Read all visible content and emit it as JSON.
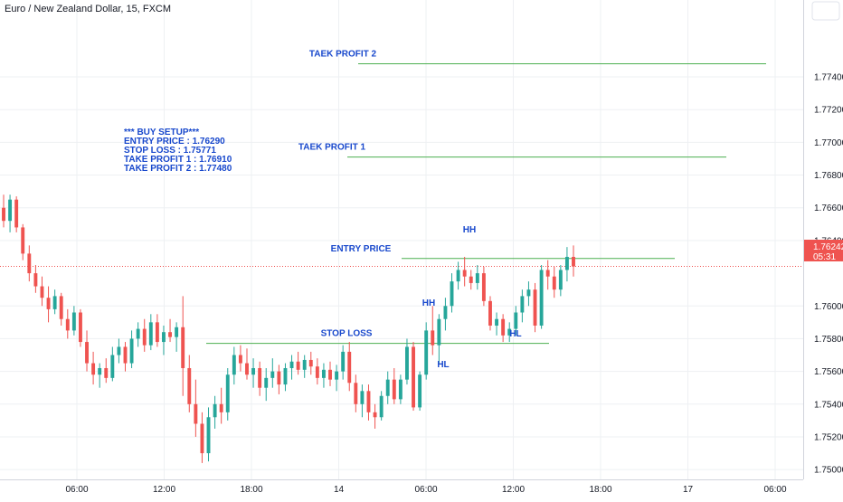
{
  "header": {
    "symbol_title": "Euro / New Zealand Dollar, 15, FXCM"
  },
  "colors": {
    "up": "#26a69a",
    "down": "#ef5350",
    "level_line": "#4caf50",
    "annotation": "#1848cc",
    "price_tag": "#ef5350",
    "grid": "#eef0f3"
  },
  "price_tag": {
    "price": "1.76242",
    "countdown": "05:31"
  },
  "chart_data": {
    "type": "candlestick",
    "title": "Euro / New Zealand Dollar, 15, FXCM",
    "x_ticks": [
      "06:00",
      "12:00",
      "18:00",
      "14",
      "06:00",
      "12:00",
      "18:00",
      "17",
      "06:00"
    ],
    "y_ticks": [
      "1.77400",
      "1.77200",
      "1.77000",
      "1.76800",
      "1.76600",
      "1.76400",
      "1.76000",
      "1.75800",
      "1.75600",
      "1.75400",
      "1.75200",
      "1.75000"
    ],
    "ylim": [
      1.7494,
      1.7787
    ],
    "grid": true,
    "last_price": 1.76242,
    "levels": [
      {
        "name": "TAEK PROFIT 2",
        "price": 1.7748
      },
      {
        "name": "TAEK PROFIT 1",
        "price": 1.7691
      },
      {
        "name": "ENTRY PRICE",
        "price": 1.7629
      },
      {
        "name": "STOP LOSS",
        "price": 1.75771
      }
    ],
    "labels": [
      "TAEK PROFIT 2",
      "TAEK PROFIT 1",
      "ENTRY PRICE",
      "STOP LOSS",
      "HH",
      "HH",
      "HL",
      "HL"
    ],
    "setup_text": [
      "*** BUY SETUP***",
      "ENTRY PRICE : 1.76290",
      "STOP LOSS : 1.75771",
      "TAKE PROFIT 1 : 1.76910",
      "TAKE PROFIT 2 : 1.77480"
    ],
    "candles": [
      {
        "o": 1.766,
        "h": 1.7668,
        "l": 1.7648,
        "c": 1.7652
      },
      {
        "o": 1.7652,
        "h": 1.7668,
        "l": 1.7645,
        "c": 1.7665
      },
      {
        "o": 1.7665,
        "h": 1.7667,
        "l": 1.7645,
        "c": 1.7648
      },
      {
        "o": 1.7648,
        "h": 1.765,
        "l": 1.7628,
        "c": 1.7632
      },
      {
        "o": 1.7632,
        "h": 1.7637,
        "l": 1.7615,
        "c": 1.762
      },
      {
        "o": 1.762,
        "h": 1.7625,
        "l": 1.7608,
        "c": 1.7612
      },
      {
        "o": 1.7612,
        "h": 1.7618,
        "l": 1.76,
        "c": 1.7605
      },
      {
        "o": 1.7605,
        "h": 1.7612,
        "l": 1.759,
        "c": 1.7598
      },
      {
        "o": 1.7598,
        "h": 1.761,
        "l": 1.7595,
        "c": 1.7606
      },
      {
        "o": 1.7606,
        "h": 1.7608,
        "l": 1.7588,
        "c": 1.7592
      },
      {
        "o": 1.7592,
        "h": 1.7598,
        "l": 1.758,
        "c": 1.7585
      },
      {
        "o": 1.7585,
        "h": 1.76,
        "l": 1.7582,
        "c": 1.7596
      },
      {
        "o": 1.7596,
        "h": 1.7598,
        "l": 1.7575,
        "c": 1.7578
      },
      {
        "o": 1.7578,
        "h": 1.7585,
        "l": 1.756,
        "c": 1.7565
      },
      {
        "o": 1.7565,
        "h": 1.7572,
        "l": 1.7552,
        "c": 1.7558
      },
      {
        "o": 1.7558,
        "h": 1.7565,
        "l": 1.755,
        "c": 1.7562
      },
      {
        "o": 1.7562,
        "h": 1.7568,
        "l": 1.7553,
        "c": 1.7556
      },
      {
        "o": 1.7556,
        "h": 1.7575,
        "l": 1.7554,
        "c": 1.757
      },
      {
        "o": 1.757,
        "h": 1.758,
        "l": 1.7565,
        "c": 1.7575
      },
      {
        "o": 1.7575,
        "h": 1.7578,
        "l": 1.756,
        "c": 1.7565
      },
      {
        "o": 1.7565,
        "h": 1.7585,
        "l": 1.7562,
        "c": 1.758
      },
      {
        "o": 1.758,
        "h": 1.759,
        "l": 1.7575,
        "c": 1.7586
      },
      {
        "o": 1.7586,
        "h": 1.7592,
        "l": 1.7572,
        "c": 1.7576
      },
      {
        "o": 1.7576,
        "h": 1.7595,
        "l": 1.7573,
        "c": 1.759
      },
      {
        "o": 1.759,
        "h": 1.7595,
        "l": 1.7575,
        "c": 1.7578
      },
      {
        "o": 1.7578,
        "h": 1.7588,
        "l": 1.757,
        "c": 1.7584
      },
      {
        "o": 1.7584,
        "h": 1.7592,
        "l": 1.7578,
        "c": 1.7581
      },
      {
        "o": 1.7581,
        "h": 1.759,
        "l": 1.7572,
        "c": 1.7587
      },
      {
        "o": 1.7587,
        "h": 1.7606,
        "l": 1.7545,
        "c": 1.7562
      },
      {
        "o": 1.7562,
        "h": 1.757,
        "l": 1.7535,
        "c": 1.754
      },
      {
        "o": 1.754,
        "h": 1.7555,
        "l": 1.752,
        "c": 1.7528
      },
      {
        "o": 1.7528,
        "h": 1.7535,
        "l": 1.7504,
        "c": 1.751
      },
      {
        "o": 1.751,
        "h": 1.7538,
        "l": 1.7505,
        "c": 1.7532
      },
      {
        "o": 1.7532,
        "h": 1.7545,
        "l": 1.7525,
        "c": 1.754
      },
      {
        "o": 1.754,
        "h": 1.755,
        "l": 1.7528,
        "c": 1.7535
      },
      {
        "o": 1.7535,
        "h": 1.7562,
        "l": 1.753,
        "c": 1.7558
      },
      {
        "o": 1.7558,
        "h": 1.7575,
        "l": 1.7552,
        "c": 1.757
      },
      {
        "o": 1.757,
        "h": 1.7576,
        "l": 1.756,
        "c": 1.7565
      },
      {
        "o": 1.7565,
        "h": 1.7574,
        "l": 1.7555,
        "c": 1.7558
      },
      {
        "o": 1.7558,
        "h": 1.7568,
        "l": 1.755,
        "c": 1.7562
      },
      {
        "o": 1.7562,
        "h": 1.7566,
        "l": 1.7545,
        "c": 1.755
      },
      {
        "o": 1.755,
        "h": 1.7562,
        "l": 1.7542,
        "c": 1.7556
      },
      {
        "o": 1.7556,
        "h": 1.7568,
        "l": 1.755,
        "c": 1.756
      },
      {
        "o": 1.756,
        "h": 1.7564,
        "l": 1.7546,
        "c": 1.7552
      },
      {
        "o": 1.7552,
        "h": 1.7565,
        "l": 1.7548,
        "c": 1.7562
      },
      {
        "o": 1.7562,
        "h": 1.757,
        "l": 1.7555,
        "c": 1.7566
      },
      {
        "o": 1.7566,
        "h": 1.7572,
        "l": 1.7558,
        "c": 1.7561
      },
      {
        "o": 1.7561,
        "h": 1.757,
        "l": 1.7556,
        "c": 1.7567
      },
      {
        "o": 1.7567,
        "h": 1.7572,
        "l": 1.7558,
        "c": 1.7563
      },
      {
        "o": 1.7563,
        "h": 1.7568,
        "l": 1.7552,
        "c": 1.7556
      },
      {
        "o": 1.7556,
        "h": 1.7565,
        "l": 1.755,
        "c": 1.7561
      },
      {
        "o": 1.7561,
        "h": 1.7566,
        "l": 1.7551,
        "c": 1.7555
      },
      {
        "o": 1.7555,
        "h": 1.7564,
        "l": 1.7548,
        "c": 1.756
      },
      {
        "o": 1.756,
        "h": 1.7576,
        "l": 1.7555,
        "c": 1.7572
      },
      {
        "o": 1.7572,
        "h": 1.7578,
        "l": 1.7548,
        "c": 1.7553
      },
      {
        "o": 1.7553,
        "h": 1.7558,
        "l": 1.7535,
        "c": 1.754
      },
      {
        "o": 1.754,
        "h": 1.7552,
        "l": 1.7532,
        "c": 1.7548
      },
      {
        "o": 1.7548,
        "h": 1.7552,
        "l": 1.753,
        "c": 1.7535
      },
      {
        "o": 1.7535,
        "h": 1.754,
        "l": 1.7525,
        "c": 1.7532
      },
      {
        "o": 1.7532,
        "h": 1.7548,
        "l": 1.753,
        "c": 1.7545
      },
      {
        "o": 1.7545,
        "h": 1.756,
        "l": 1.754,
        "c": 1.7555
      },
      {
        "o": 1.7555,
        "h": 1.7562,
        "l": 1.754,
        "c": 1.7543
      },
      {
        "o": 1.7543,
        "h": 1.7558,
        "l": 1.754,
        "c": 1.7555
      },
      {
        "o": 1.7555,
        "h": 1.758,
        "l": 1.7552,
        "c": 1.7575
      },
      {
        "o": 1.7575,
        "h": 1.7578,
        "l": 1.7536,
        "c": 1.7538
      },
      {
        "o": 1.7538,
        "h": 1.756,
        "l": 1.7536,
        "c": 1.7558
      },
      {
        "o": 1.7558,
        "h": 1.759,
        "l": 1.7555,
        "c": 1.7585
      },
      {
        "o": 1.7585,
        "h": 1.76,
        "l": 1.757,
        "c": 1.7576
      },
      {
        "o": 1.7576,
        "h": 1.7595,
        "l": 1.7565,
        "c": 1.7592
      },
      {
        "o": 1.7592,
        "h": 1.7605,
        "l": 1.7585,
        "c": 1.76
      },
      {
        "o": 1.76,
        "h": 1.762,
        "l": 1.7596,
        "c": 1.7615
      },
      {
        "o": 1.7615,
        "h": 1.7627,
        "l": 1.761,
        "c": 1.7622
      },
      {
        "o": 1.7622,
        "h": 1.763,
        "l": 1.7612,
        "c": 1.7618
      },
      {
        "o": 1.7618,
        "h": 1.7622,
        "l": 1.761,
        "c": 1.7614
      },
      {
        "o": 1.7614,
        "h": 1.7625,
        "l": 1.761,
        "c": 1.762
      },
      {
        "o": 1.762,
        "h": 1.7624,
        "l": 1.76,
        "c": 1.7603
      },
      {
        "o": 1.7603,
        "h": 1.7606,
        "l": 1.7585,
        "c": 1.7588
      },
      {
        "o": 1.7588,
        "h": 1.7596,
        "l": 1.7582,
        "c": 1.7592
      },
      {
        "o": 1.7592,
        "h": 1.7595,
        "l": 1.7578,
        "c": 1.7582
      },
      {
        "o": 1.7582,
        "h": 1.759,
        "l": 1.7578,
        "c": 1.7586
      },
      {
        "o": 1.7586,
        "h": 1.76,
        "l": 1.7582,
        "c": 1.7596
      },
      {
        "o": 1.7596,
        "h": 1.761,
        "l": 1.759,
        "c": 1.7606
      },
      {
        "o": 1.7606,
        "h": 1.7615,
        "l": 1.76,
        "c": 1.761
      },
      {
        "o": 1.761,
        "h": 1.7614,
        "l": 1.7584,
        "c": 1.7588
      },
      {
        "o": 1.7588,
        "h": 1.7625,
        "l": 1.7586,
        "c": 1.7622
      },
      {
        "o": 1.7622,
        "h": 1.7628,
        "l": 1.761,
        "c": 1.7618
      },
      {
        "o": 1.7618,
        "h": 1.7624,
        "l": 1.7605,
        "c": 1.761
      },
      {
        "o": 1.761,
        "h": 1.7625,
        "l": 1.7606,
        "c": 1.7622
      },
      {
        "o": 1.7622,
        "h": 1.7636,
        "l": 1.7615,
        "c": 1.763
      },
      {
        "o": 1.763,
        "h": 1.7637,
        "l": 1.7618,
        "c": 1.76242
      }
    ]
  }
}
